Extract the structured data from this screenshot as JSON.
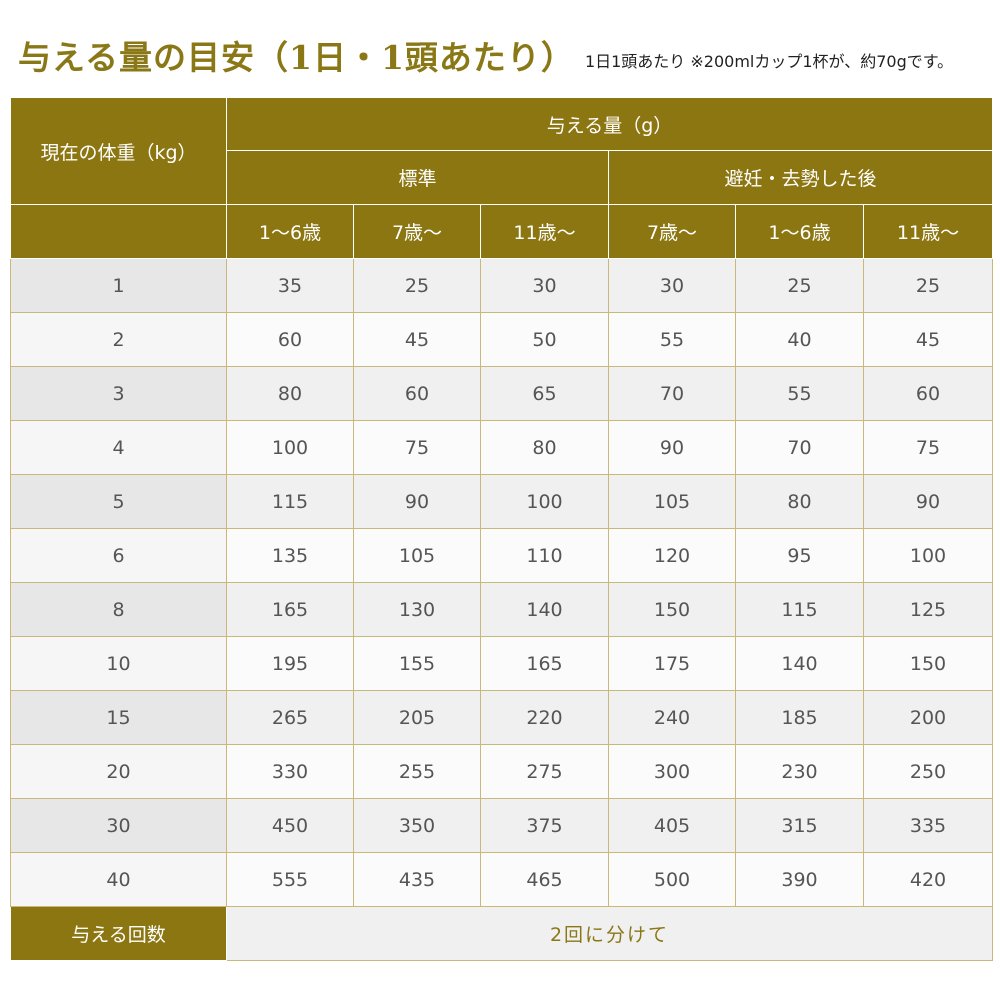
{
  "title": "与える量の目安（1日・1頭あたり）",
  "note": "1日1頭あたり ※200mlカップ1杯が、約70gです。",
  "table": {
    "weight_header": "現在の体重（kg）",
    "amount_header": "与える量（g）",
    "groups": [
      "標準",
      "避妊・去勢した後"
    ],
    "ages": [
      "1〜6歳",
      "7歳〜",
      "11歳〜",
      "7歳〜",
      "1〜6歳",
      "11歳〜"
    ],
    "rows": [
      {
        "weight": "1",
        "values": [
          "35",
          "25",
          "30",
          "30",
          "25",
          "25"
        ]
      },
      {
        "weight": "2",
        "values": [
          "60",
          "45",
          "50",
          "55",
          "40",
          "45"
        ]
      },
      {
        "weight": "3",
        "values": [
          "80",
          "60",
          "65",
          "70",
          "55",
          "60"
        ]
      },
      {
        "weight": "4",
        "values": [
          "100",
          "75",
          "80",
          "90",
          "70",
          "75"
        ]
      },
      {
        "weight": "5",
        "values": [
          "115",
          "90",
          "100",
          "105",
          "80",
          "90"
        ]
      },
      {
        "weight": "6",
        "values": [
          "135",
          "105",
          "110",
          "120",
          "95",
          "100"
        ]
      },
      {
        "weight": "8",
        "values": [
          "165",
          "130",
          "140",
          "150",
          "115",
          "125"
        ]
      },
      {
        "weight": "10",
        "values": [
          "195",
          "155",
          "165",
          "175",
          "140",
          "150"
        ]
      },
      {
        "weight": "15",
        "values": [
          "265",
          "205",
          "220",
          "240",
          "185",
          "200"
        ]
      },
      {
        "weight": "20",
        "values": [
          "330",
          "255",
          "275",
          "300",
          "230",
          "250"
        ]
      },
      {
        "weight": "30",
        "values": [
          "450",
          "350",
          "375",
          "405",
          "315",
          "335"
        ]
      },
      {
        "weight": "40",
        "values": [
          "555",
          "435",
          "465",
          "500",
          "390",
          "420"
        ]
      }
    ],
    "times_label": "与える回数",
    "times_value": "2回に分けて"
  },
  "colors": {
    "accent": "#8c7612",
    "title": "#8a7716",
    "row_shade": "#f0f0f0",
    "border": "#c8b97a"
  }
}
